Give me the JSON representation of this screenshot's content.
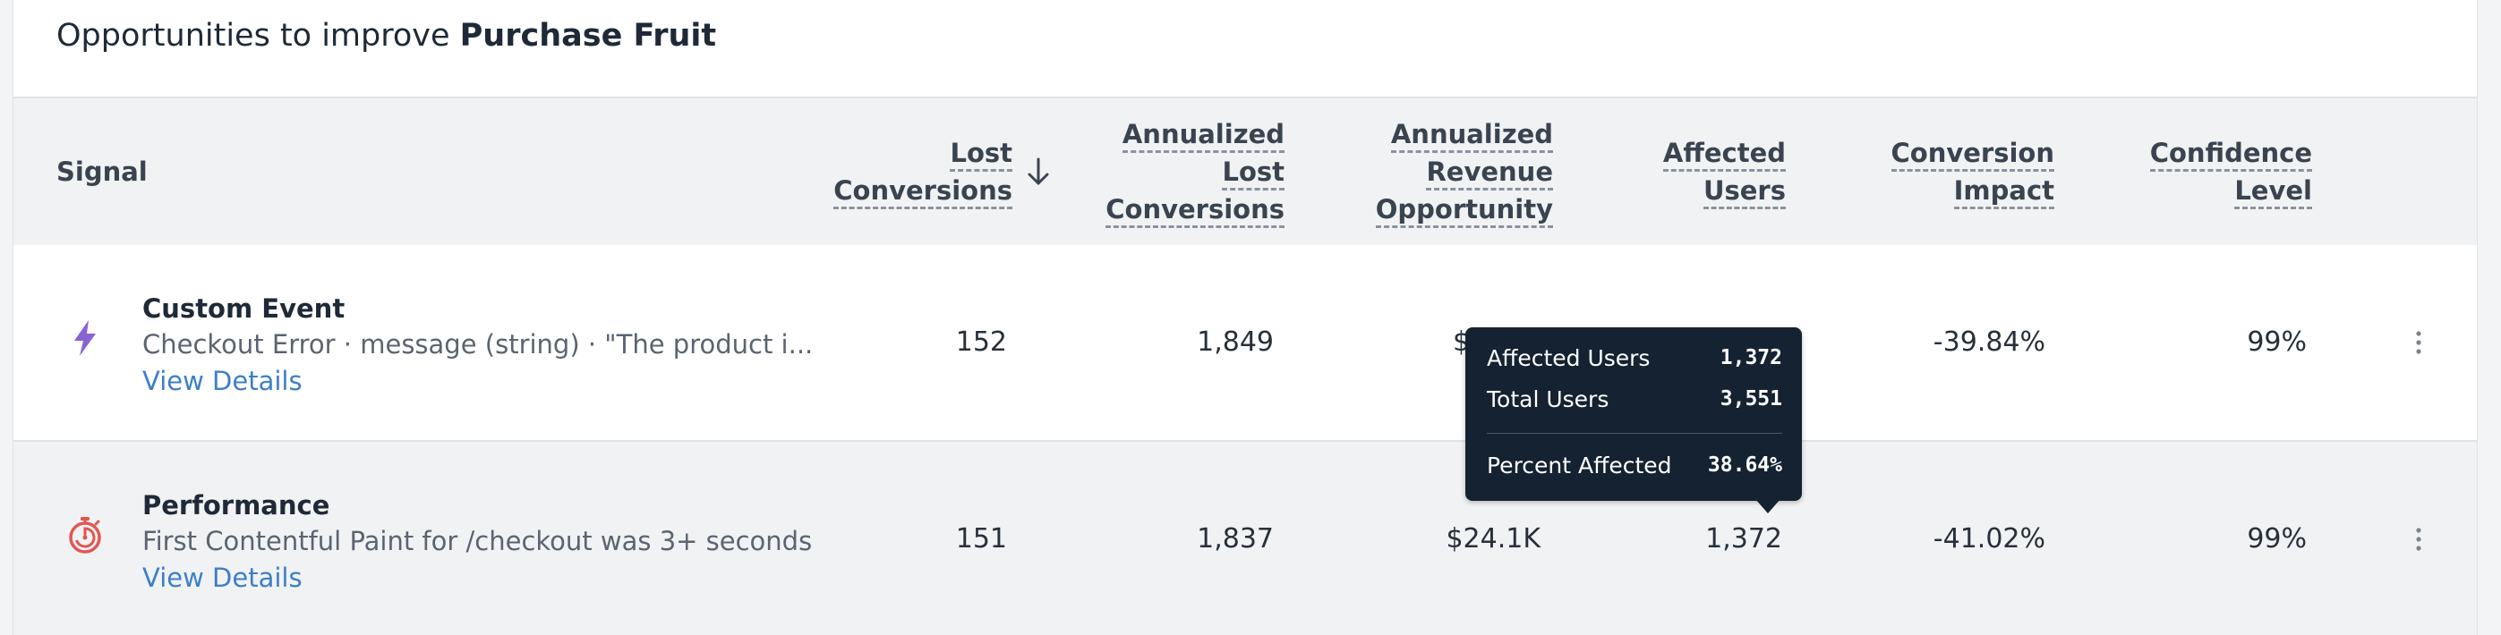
{
  "title": {
    "prefix": "Opportunities to improve ",
    "bold": "Purchase Fruit"
  },
  "columns": {
    "signal": "Signal",
    "lost_conversions": [
      "Lost",
      "Conversions"
    ],
    "annualized_lost_conversions": [
      "Annualized",
      "Lost",
      "Conversions"
    ],
    "annualized_revenue_opportunity": [
      "Annualized",
      "Revenue",
      "Opportunity"
    ],
    "affected_users": [
      "Affected",
      "Users"
    ],
    "conversion_impact": [
      "Conversion",
      "Impact"
    ],
    "confidence_level": [
      "Confidence",
      "Level"
    ],
    "sort_icon": "arrow-down-icon"
  },
  "rows": [
    {
      "icon": "lightning-bolt-icon",
      "icon_color": "#8a63d2",
      "title": "Custom Event",
      "description": "Checkout Error · message (string) · \"The product i...",
      "link": "View Details",
      "lost_conversions": "152",
      "annualized_lost_conversions": "1,849",
      "annualized_revenue_opportunity": "$",
      "affected_users": "",
      "conversion_impact": "-39.84%",
      "confidence_level": "99%"
    },
    {
      "icon": "stopwatch-icon",
      "icon_color": "#e0574f",
      "title": "Performance",
      "description": "First Contentful Paint for /checkout was 3+ seconds",
      "link": "View Details",
      "lost_conversions": "151",
      "annualized_lost_conversions": "1,837",
      "annualized_revenue_opportunity": "$24.1K",
      "affected_users": "1,372",
      "conversion_impact": "-41.02%",
      "confidence_level": "99%"
    }
  ],
  "tooltip": {
    "affected_users_label": "Affected Users",
    "affected_users_value": "1,372",
    "total_users_label": "Total Users",
    "total_users_value": "3,551",
    "percent_affected_label": "Percent Affected",
    "percent_affected_value": "38.64%"
  },
  "colors": {
    "link": "#3d7fc7",
    "tooltip_bg": "#142232",
    "header_bg": "#f1f2f4"
  }
}
